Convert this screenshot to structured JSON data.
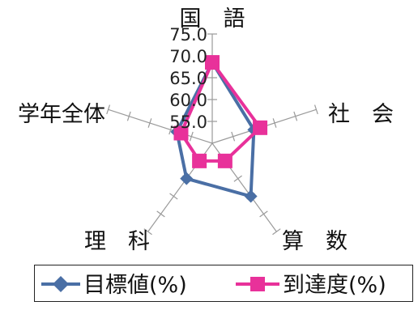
{
  "chart_data": {
    "type": "radar",
    "axes": [
      "国　語",
      "社　会",
      "算　数",
      "理　科",
      "学年全体"
    ],
    "range": [
      50.0,
      75.0
    ],
    "ticks": [
      "75.0",
      "70.0",
      "65.0",
      "60.0",
      "55.0"
    ],
    "tick_values": [
      75.0,
      70.0,
      65.0,
      60.0,
      55.0
    ],
    "series": [
      {
        "name": "目標値(%)",
        "color": "#4a6fa5",
        "marker": "diamond",
        "values": [
          68.5,
          60.0,
          65.0,
          60.0,
          58.5
        ]
      },
      {
        "name": "到達度(%)",
        "color": "#e8319a",
        "marker": "square",
        "values": [
          68.5,
          61.5,
          55.0,
          55.0,
          57.5
        ]
      }
    ],
    "grid": false,
    "legend": "bottom"
  }
}
